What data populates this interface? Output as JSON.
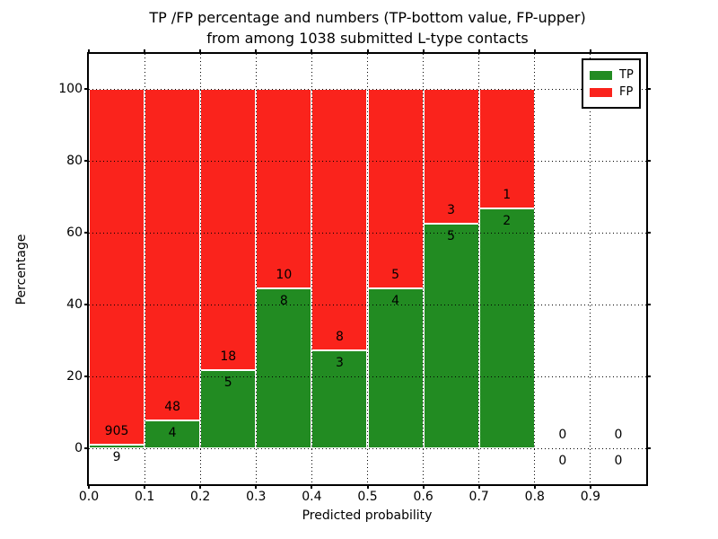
{
  "chart_data": {
    "type": "bar",
    "stacked": true,
    "normalized_to_percent": true,
    "title_line1": "TP /FP percentage and numbers (TP-bottom value, FP-upper)",
    "title_line2": "from among 1038 submitted L-type contacts",
    "xlabel": "Predicted probability",
    "ylabel": "Percentage",
    "legend_position": "upper right",
    "grid": "dotted",
    "xlim": [
      0.0,
      1.0
    ],
    "ylim": [
      -10,
      110
    ],
    "bin_width": 0.1,
    "x_tick_labels": [
      "0.0",
      "0.1",
      "0.2",
      "0.3",
      "0.4",
      "0.5",
      "0.6",
      "0.7",
      "0.8",
      "0.9"
    ],
    "y_tick_labels": [
      "0",
      "20",
      "40",
      "60",
      "80",
      "100"
    ],
    "categories": [
      "0.0-0.1",
      "0.1-0.2",
      "0.2-0.3",
      "0.3-0.4",
      "0.4-0.5",
      "0.5-0.6",
      "0.6-0.7",
      "0.7-0.8",
      "0.8-0.9",
      "0.9-1.0"
    ],
    "series": [
      {
        "name": "TP",
        "color": "#228b22",
        "values": [
          9,
          4,
          5,
          8,
          3,
          4,
          5,
          2,
          0,
          0
        ]
      },
      {
        "name": "FP",
        "color": "#fa231c",
        "values": [
          905,
          48,
          18,
          10,
          8,
          5,
          3,
          1,
          0,
          0
        ]
      }
    ],
    "total_contacts": 1038
  }
}
